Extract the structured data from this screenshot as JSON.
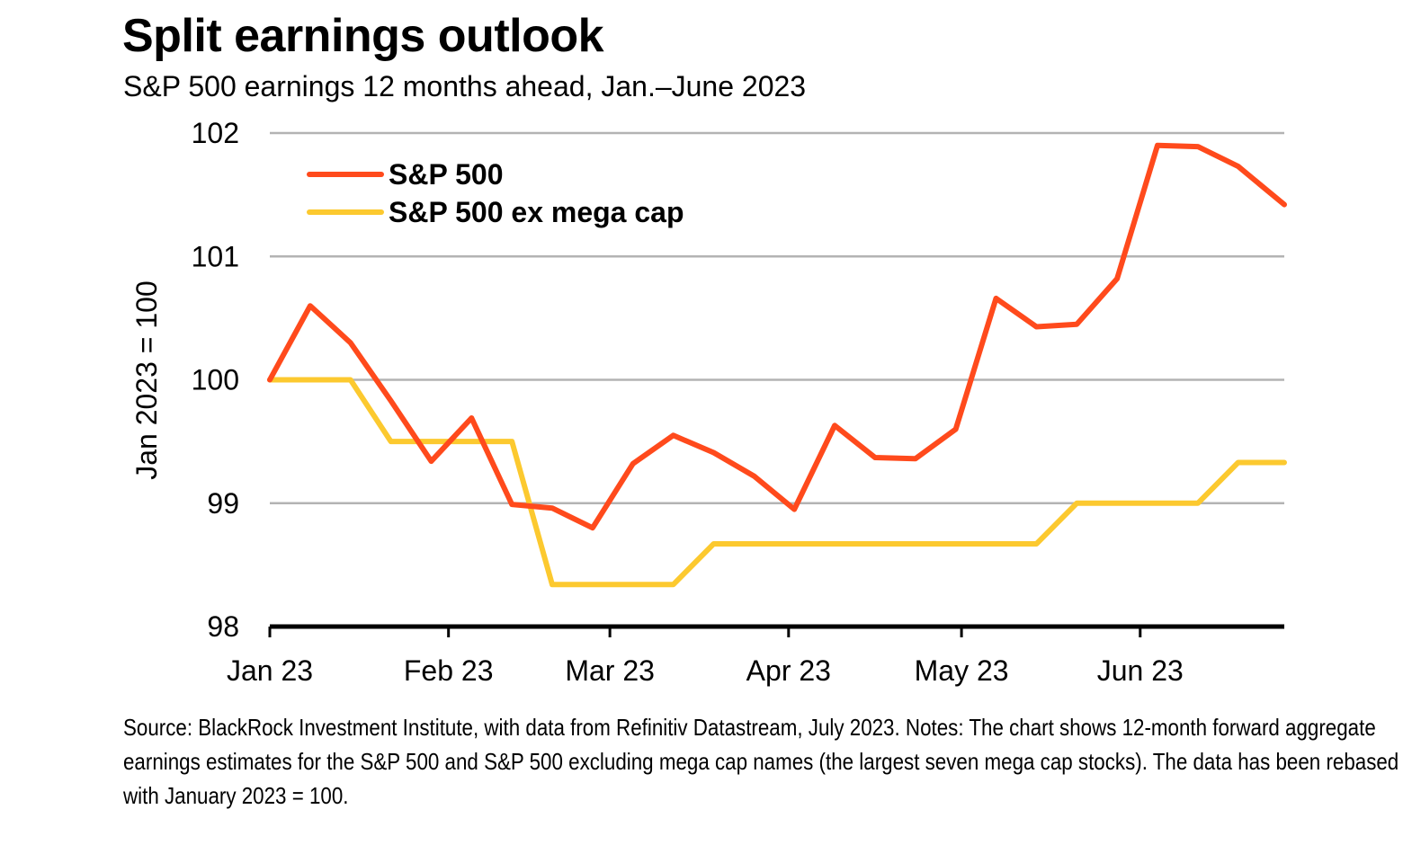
{
  "chart_data": {
    "type": "line",
    "title": "Split earnings outlook",
    "subtitle": "S&P 500 earnings 12 months ahead, Jan.–June 2023",
    "ylabel": "Jan 2023 = 100",
    "xlabel": "",
    "ylim": [
      98,
      102
    ],
    "yticks": [
      98,
      99,
      100,
      101,
      102
    ],
    "xlim": [
      "2023-01-01",
      "2023-06-26"
    ],
    "xticks": [
      {
        "label": "Jan 23",
        "date": "2023-01-01"
      },
      {
        "label": "Feb 23",
        "date": "2023-02-01"
      },
      {
        "label": "Mar 23",
        "date": "2023-03-01"
      },
      {
        "label": "Apr 23",
        "date": "2023-04-01"
      },
      {
        "label": "May 23",
        "date": "2023-05-01"
      },
      {
        "label": "Jun 23",
        "date": "2023-06-01"
      }
    ],
    "grid": true,
    "legend": "top-left",
    "x": [
      "2023-01-01",
      "2023-01-08",
      "2023-01-15",
      "2023-01-22",
      "2023-01-29",
      "2023-02-05",
      "2023-02-12",
      "2023-02-19",
      "2023-02-26",
      "2023-03-05",
      "2023-03-12",
      "2023-03-19",
      "2023-03-26",
      "2023-04-02",
      "2023-04-09",
      "2023-04-16",
      "2023-04-23",
      "2023-04-30",
      "2023-05-07",
      "2023-05-14",
      "2023-05-21",
      "2023-05-28",
      "2023-06-04",
      "2023-06-11",
      "2023-06-18",
      "2023-06-26"
    ],
    "series": [
      {
        "name": "S&P 500",
        "color": "#ff4a1c",
        "values": [
          100.0,
          100.6,
          100.3,
          99.83,
          99.34,
          99.69,
          98.99,
          98.96,
          98.8,
          99.32,
          99.55,
          99.41,
          99.22,
          98.95,
          99.63,
          99.37,
          99.36,
          99.6,
          100.66,
          100.43,
          100.45,
          100.82,
          101.9,
          101.89,
          101.73,
          101.42
        ]
      },
      {
        "name": "S&P 500 ex mega cap",
        "color": "#fcc92f",
        "values": [
          100.0,
          100.0,
          100.0,
          99.5,
          99.5,
          99.5,
          99.5,
          98.34,
          98.34,
          98.34,
          98.34,
          98.67,
          98.67,
          98.67,
          98.67,
          98.67,
          98.67,
          98.67,
          98.67,
          98.67,
          99.0,
          99.0,
          99.0,
          99.0,
          99.33,
          99.33
        ]
      }
    ]
  },
  "note": "Source: BlackRock Investment Institute, with data from Refinitiv Datastream, July 2023. Notes: The chart shows 12-month forward aggregate earnings estimates for the S&P 500 and S&P 500 excluding mega cap names (the largest seven mega cap stocks). The data has been rebased with January 2023 = 100."
}
